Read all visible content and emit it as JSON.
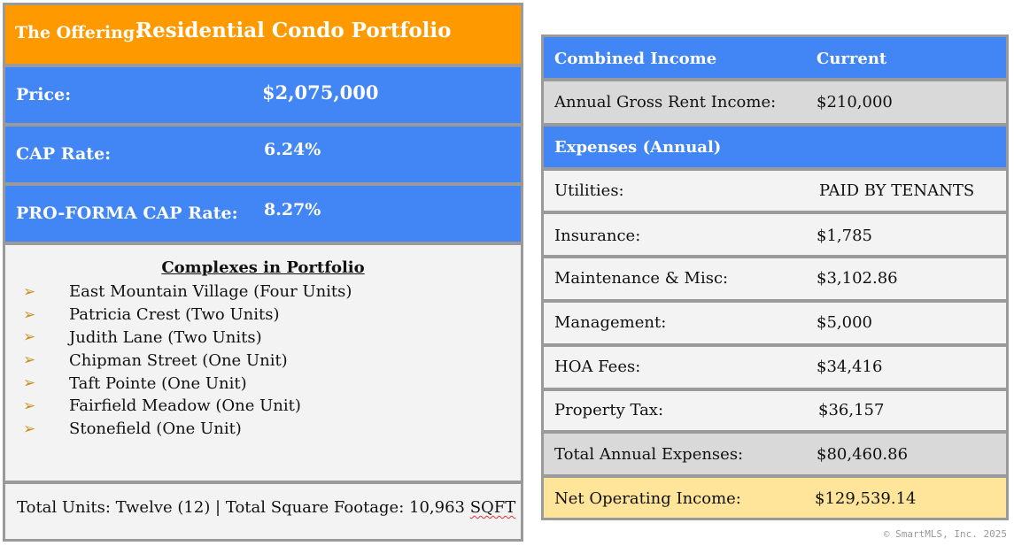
{
  "offering": {
    "label": "The Offering:",
    "value": "Residential Condo Portfolio"
  },
  "price": {
    "label": "Price:",
    "value": "$2,075,000"
  },
  "cap_rate": {
    "label": "CAP Rate:",
    "value": "6.24%"
  },
  "proforma_cap_rate": {
    "label": "PRO-FORMA CAP Rate:",
    "value": "8.27%"
  },
  "complexes": {
    "title": "Complexes in Portfolio",
    "bullet": "➢",
    "items": [
      "East Mountain Village (Four Units)",
      "Patricia Crest (Two Units)",
      "Judith Lane (Two Units)",
      "Chipman Street (One Unit)",
      "Taft Pointe (One Unit)",
      "Fairfield Meadow (One Unit)",
      "Stonefield (One Unit)"
    ]
  },
  "totals": {
    "text": "Total Units: Twelve (12)  | Total Square Footage: 10,963 ",
    "sqft": "SQFT"
  },
  "income": {
    "header": {
      "label": "Combined Income",
      "value": "Current"
    },
    "gross_rent": {
      "label": "Annual Gross Rent Income:",
      "value": "$210,000"
    },
    "expenses_header": {
      "label": "Expenses (Annual)"
    },
    "utilities": {
      "label": "Utilities:",
      "value": "PAID BY TENANTS"
    },
    "insurance": {
      "label": "Insurance:",
      "value": "$1,785"
    },
    "maintenance": {
      "label": "Maintenance & Misc:",
      "value": "$3,102.86"
    },
    "management": {
      "label": "Management:",
      "value": "$5,000"
    },
    "hoa": {
      "label": "HOA Fees:",
      "value": "$34,416"
    },
    "property_tax": {
      "label": "Property Tax:",
      "value": "$36,157"
    },
    "total_expenses": {
      "label": "Total Annual Expenses:",
      "value": "$80,460.86"
    },
    "noi": {
      "label": "Net Operating Income:",
      "value": "$129,539.14"
    }
  },
  "footer": {
    "copyright": "© SmartMLS, Inc. 2025"
  },
  "colors": {
    "orange": "#ff9900",
    "blue": "#4285f4",
    "gray_row": "#d9d9d9",
    "light_row": "#f3f3f3",
    "gold_row": "#ffe599",
    "bullet": "#c8901c",
    "border": "#9a9a9a"
  }
}
